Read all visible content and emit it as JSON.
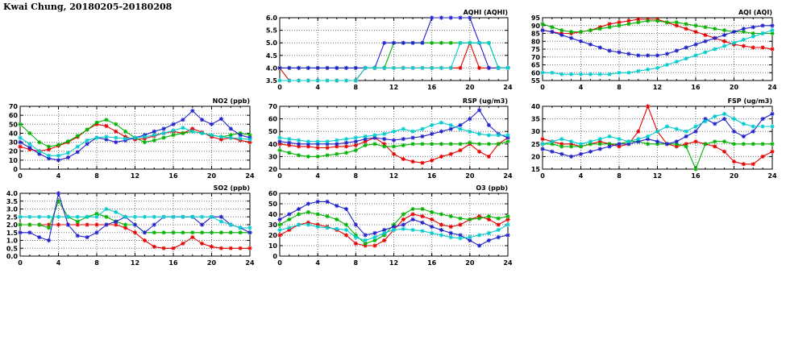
{
  "title": "Kwai Chung, 20180205-20180208",
  "chart_data": [
    {
      "id": "aqhi",
      "type": "line",
      "title": "AQHI (AQHI)",
      "xlim": [
        0,
        24
      ],
      "xticks": [
        0,
        4,
        8,
        12,
        16,
        20,
        24
      ],
      "x_start": 0,
      "x_step": 1,
      "ylim": [
        3.5,
        6.0
      ],
      "yticks": [
        3.5,
        4.0,
        4.5,
        5.0,
        5.5,
        6.0
      ],
      "ytick_labels": [
        "3.5",
        "4.0",
        "4.5",
        "5.0",
        "5.5",
        "6.0"
      ],
      "grid": true,
      "legend": false,
      "series": [
        {
          "name": "red",
          "color": "#e60000",
          "values": [
            4,
            3.5,
            3.5,
            3.5,
            3.5,
            3.5,
            3.5,
            3.5,
            3.5,
            4,
            4,
            4,
            4,
            4,
            4,
            4,
            4,
            4,
            4,
            4,
            5,
            4,
            4,
            4,
            4
          ]
        },
        {
          "name": "green",
          "color": "#00b200",
          "values": [
            4,
            4,
            4,
            4,
            4,
            4,
            4,
            4,
            4,
            4,
            4,
            4,
            5,
            5,
            5,
            5,
            5,
            5,
            5,
            5,
            5,
            5,
            5,
            4,
            4
          ]
        },
        {
          "name": "blue",
          "color": "#2222cc",
          "values": [
            4,
            4,
            4,
            4,
            4,
            4,
            4,
            4,
            4,
            4,
            4,
            5,
            5,
            5,
            5,
            5,
            6,
            6,
            6,
            6,
            6,
            5,
            4,
            4,
            4
          ]
        },
        {
          "name": "cyan",
          "color": "#00cccc",
          "values": [
            3.5,
            3.5,
            3.5,
            3.5,
            3.5,
            3.5,
            3.5,
            3.5,
            3.5,
            4,
            4,
            4,
            4,
            4,
            4,
            4,
            4,
            4,
            4,
            5,
            5,
            5,
            5,
            4,
            4
          ]
        }
      ]
    },
    {
      "id": "aqi",
      "type": "line",
      "title": "AQI (AQI)",
      "xlim": [
        0,
        24
      ],
      "xticks": [
        0,
        4,
        8,
        12,
        16,
        20,
        24
      ],
      "x_start": 0,
      "x_step": 1,
      "ylim": [
        55,
        95
      ],
      "yticks": [
        55,
        60,
        65,
        70,
        75,
        80,
        85,
        90,
        95
      ],
      "ytick_labels": [
        "55",
        "60",
        "65",
        "70",
        "75",
        "80",
        "85",
        "90",
        "95"
      ],
      "grid": true,
      "legend": false,
      "series": [
        {
          "name": "red",
          "color": "#e60000",
          "values": [
            87,
            86,
            85,
            85,
            86,
            87,
            89,
            91,
            92,
            93,
            94,
            94,
            94,
            92,
            90,
            88,
            86,
            84,
            82,
            80,
            78,
            77,
            76,
            76,
            75
          ]
        },
        {
          "name": "green",
          "color": "#00b200",
          "values": [
            91,
            89,
            87,
            86,
            86,
            87,
            88,
            89,
            90,
            91,
            92,
            93,
            93,
            92,
            92,
            91,
            90,
            89,
            88,
            87,
            86,
            86,
            85,
            85,
            85
          ]
        },
        {
          "name": "blue",
          "color": "#2222cc",
          "values": [
            87,
            86,
            84,
            82,
            80,
            78,
            76,
            74,
            73,
            72,
            71,
            71,
            71,
            72,
            74,
            76,
            78,
            80,
            82,
            84,
            86,
            88,
            89,
            90,
            90
          ]
        },
        {
          "name": "cyan",
          "color": "#00cccc",
          "values": [
            60,
            60,
            59,
            59,
            59,
            59,
            59,
            59,
            60,
            60,
            61,
            62,
            63,
            65,
            67,
            69,
            71,
            73,
            75,
            77,
            79,
            81,
            83,
            85,
            87
          ]
        }
      ]
    },
    {
      "id": "no2",
      "type": "line",
      "title": "NO2 (ppb)",
      "xlim": [
        0,
        24
      ],
      "xticks": [
        0,
        4,
        8,
        12,
        16,
        20,
        24
      ],
      "x_start": 0,
      "x_step": 1,
      "ylim": [
        0,
        70
      ],
      "yticks": [
        0,
        10,
        20,
        30,
        40,
        50,
        60,
        70
      ],
      "ytick_labels": [
        "0",
        "10",
        "20",
        "30",
        "40",
        "50",
        "60",
        "70"
      ],
      "grid": true,
      "legend": false,
      "series": [
        {
          "name": "red",
          "color": "#e60000",
          "values": [
            25,
            22,
            20,
            22,
            26,
            30,
            36,
            44,
            50,
            48,
            42,
            36,
            33,
            34,
            37,
            40,
            42,
            40,
            45,
            41,
            36,
            33,
            35,
            32,
            30
          ]
        },
        {
          "name": "green",
          "color": "#00b200",
          "values": [
            50,
            40,
            30,
            25,
            27,
            31,
            37,
            44,
            52,
            55,
            50,
            42,
            35,
            30,
            32,
            35,
            38,
            40,
            42,
            40,
            38,
            36,
            38,
            40,
            38
          ]
        },
        {
          "name": "blue",
          "color": "#2222cc",
          "values": [
            30,
            24,
            17,
            12,
            10,
            13,
            19,
            28,
            35,
            33,
            30,
            32,
            35,
            38,
            42,
            45,
            50,
            55,
            65,
            55,
            50,
            56,
            45,
            38,
            35
          ]
        },
        {
          "name": "cyan",
          "color": "#00cccc",
          "values": [
            35,
            28,
            20,
            15,
            15,
            18,
            25,
            32,
            35,
            36,
            35,
            34,
            35,
            36,
            38,
            40,
            43,
            46,
            42,
            40,
            38,
            36,
            35,
            34,
            33
          ]
        }
      ]
    },
    {
      "id": "rsp",
      "type": "line",
      "title": "RSP (ug/m3)",
      "xlim": [
        0,
        24
      ],
      "xticks": [
        0,
        4,
        8,
        12,
        16,
        20,
        24
      ],
      "x_start": 0,
      "x_step": 1,
      "ylim": [
        20,
        70
      ],
      "yticks": [
        20,
        30,
        40,
        50,
        60,
        70
      ],
      "ytick_labels": [
        "20",
        "30",
        "40",
        "50",
        "60",
        "70"
      ],
      "grid": true,
      "legend": false,
      "series": [
        {
          "name": "red",
          "color": "#e60000",
          "values": [
            40,
            39,
            38,
            38,
            37,
            37,
            38,
            38,
            39,
            42,
            45,
            40,
            32,
            28,
            26,
            25,
            27,
            30,
            32,
            35,
            40,
            34,
            30,
            40,
            45
          ]
        },
        {
          "name": "green",
          "color": "#00b200",
          "values": [
            35,
            33,
            31,
            30,
            30,
            31,
            32,
            33,
            35,
            39,
            40,
            38,
            38,
            39,
            40,
            40,
            40,
            40,
            40,
            40,
            41,
            40,
            40,
            40,
            42
          ]
        },
        {
          "name": "blue",
          "color": "#2222cc",
          "values": [
            42,
            41,
            40,
            40,
            40,
            40,
            40,
            41,
            42,
            44,
            45,
            44,
            43,
            44,
            45,
            46,
            48,
            50,
            52,
            55,
            60,
            67,
            55,
            48,
            45
          ]
        },
        {
          "name": "cyan",
          "color": "#00cccc",
          "values": [
            45,
            44,
            43,
            42,
            42,
            42,
            43,
            44,
            45,
            46,
            47,
            48,
            50,
            52,
            50,
            52,
            55,
            57,
            55,
            52,
            50,
            48,
            47,
            47,
            47
          ]
        }
      ]
    },
    {
      "id": "fsp",
      "type": "line",
      "title": "FSP (ug/m3)",
      "xlim": [
        0,
        24
      ],
      "xticks": [
        0,
        4,
        8,
        12,
        16,
        20,
        24
      ],
      "x_start": 0,
      "x_step": 1,
      "ylim": [
        15,
        40
      ],
      "yticks": [
        15,
        20,
        25,
        30,
        35,
        40
      ],
      "ytick_labels": [
        "15",
        "20",
        "25",
        "30",
        "35",
        "40"
      ],
      "grid": true,
      "legend": false,
      "series": [
        {
          "name": "red",
          "color": "#e60000",
          "values": [
            27,
            26,
            25,
            25,
            24,
            25,
            26,
            25,
            24,
            25,
            30,
            40,
            30,
            25,
            24,
            25,
            26,
            25,
            24,
            22,
            18,
            17,
            17,
            20,
            22
          ]
        },
        {
          "name": "green",
          "color": "#00b200",
          "values": [
            25,
            25,
            24,
            24,
            24,
            25,
            25,
            25,
            25,
            26,
            26,
            25,
            25,
            25,
            25,
            24,
            15,
            25,
            26,
            26,
            25,
            25,
            25,
            25,
            25
          ]
        },
        {
          "name": "blue",
          "color": "#2222cc",
          "values": [
            23,
            22,
            21,
            20,
            21,
            22,
            23,
            24,
            25,
            25,
            26,
            27,
            26,
            25,
            26,
            28,
            30,
            35,
            33,
            35,
            30,
            28,
            30,
            35,
            37
          ]
        },
        {
          "name": "cyan",
          "color": "#00cccc",
          "values": [
            25,
            26,
            27,
            26,
            25,
            26,
            27,
            28,
            27,
            26,
            27,
            28,
            30,
            32,
            31,
            30,
            32,
            34,
            36,
            37,
            35,
            33,
            32,
            32,
            32
          ]
        }
      ]
    },
    {
      "id": "so2",
      "type": "line",
      "title": "SO2 (ppb)",
      "xlim": [
        0,
        24
      ],
      "xticks": [
        0,
        4,
        8,
        12,
        16,
        20,
        24
      ],
      "x_start": 0,
      "x_step": 1,
      "ylim": [
        0,
        4
      ],
      "yticks": [
        0,
        0.5,
        1.0,
        1.5,
        2.0,
        2.5,
        3.0,
        3.5,
        4.0
      ],
      "ytick_labels": [
        "0.0",
        "0.5",
        "1.0",
        "1.5",
        "2.0",
        "2.5",
        "3.0",
        "3.5",
        "4.0"
      ],
      "grid": true,
      "legend": false,
      "series": [
        {
          "name": "red",
          "color": "#e60000",
          "values": [
            2,
            2,
            2,
            2,
            2,
            2,
            2,
            2,
            2,
            2,
            2,
            1.8,
            1.5,
            1,
            0.6,
            0.5,
            0.5,
            0.8,
            1.2,
            0.8,
            0.6,
            0.5,
            0.5,
            0.5,
            0.5
          ]
        },
        {
          "name": "green",
          "color": "#00b200",
          "values": [
            2,
            2,
            2,
            1.8,
            3.5,
            2.5,
            2.2,
            2.5,
            2.7,
            2.5,
            2.2,
            2,
            2,
            1.5,
            1.5,
            1.5,
            1.5,
            1.5,
            1.5,
            1.5,
            1.5,
            1.5,
            1.5,
            1.5,
            1.5
          ]
        },
        {
          "name": "blue",
          "color": "#2222cc",
          "values": [
            1.5,
            1.5,
            1.2,
            1,
            4,
            2,
            1.3,
            1.2,
            1.5,
            2,
            2.2,
            2.5,
            2,
            1.5,
            2,
            2.5,
            2.5,
            2.5,
            2.5,
            2,
            2.5,
            2.5,
            2,
            1.8,
            1.5
          ]
        },
        {
          "name": "cyan",
          "color": "#00cccc",
          "values": [
            2.5,
            2.5,
            2.5,
            2.5,
            2.5,
            2.5,
            2.5,
            2.5,
            2.5,
            3,
            2.8,
            2.5,
            2.5,
            2.5,
            2.5,
            2.5,
            2.5,
            2.5,
            2.5,
            2.5,
            2.5,
            2.2,
            2,
            1.8,
            1.8
          ]
        }
      ]
    },
    {
      "id": "o3",
      "type": "line",
      "title": "O3 (ppb)",
      "xlim": [
        0,
        24
      ],
      "xticks": [
        0,
        4,
        8,
        12,
        16,
        20,
        24
      ],
      "x_start": 0,
      "x_step": 1,
      "ylim": [
        0,
        60
      ],
      "yticks": [
        0,
        10,
        20,
        30,
        40,
        50,
        60
      ],
      "ytick_labels": [
        "0",
        "10",
        "20",
        "30",
        "40",
        "50",
        "60"
      ],
      "grid": true,
      "legend": false,
      "series": [
        {
          "name": "red",
          "color": "#e60000",
          "values": [
            20,
            25,
            30,
            32,
            30,
            28,
            25,
            20,
            12,
            10,
            10,
            15,
            25,
            35,
            40,
            38,
            35,
            30,
            28,
            30,
            35,
            38,
            35,
            30,
            35
          ]
        },
        {
          "name": "green",
          "color": "#00b200",
          "values": [
            30,
            35,
            40,
            42,
            40,
            38,
            35,
            30,
            20,
            12,
            15,
            20,
            30,
            40,
            45,
            45,
            42,
            40,
            38,
            36,
            35,
            36,
            38,
            36,
            38
          ]
        },
        {
          "name": "blue",
          "color": "#2222cc",
          "values": [
            35,
            40,
            45,
            50,
            52,
            52,
            48,
            45,
            30,
            20,
            22,
            25,
            28,
            30,
            35,
            32,
            28,
            25,
            22,
            20,
            15,
            10,
            15,
            18,
            20
          ]
        },
        {
          "name": "cyan",
          "color": "#00cccc",
          "values": [
            25,
            27,
            30,
            30,
            28,
            27,
            26,
            25,
            18,
            15,
            18,
            22,
            25,
            26,
            25,
            24,
            22,
            20,
            18,
            17,
            18,
            20,
            22,
            25,
            30
          ]
        }
      ]
    }
  ]
}
